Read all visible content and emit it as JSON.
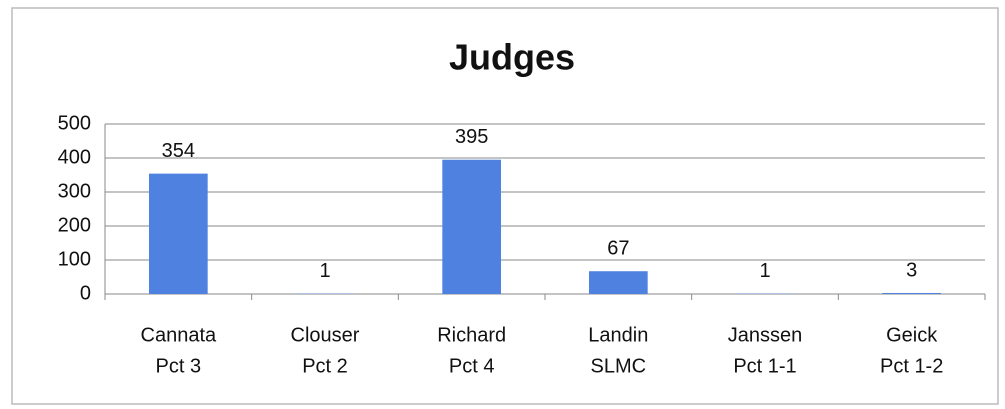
{
  "chart_data": {
    "type": "bar",
    "title": "Judges",
    "categories": [
      [
        "Cannata",
        "Pct 3"
      ],
      [
        "Clouser",
        "Pct 2"
      ],
      [
        "Richard",
        "Pct 4"
      ],
      [
        "Landin",
        "SLMC"
      ],
      [
        "Janssen",
        "Pct 1-1"
      ],
      [
        "Geick",
        "Pct 1-2"
      ]
    ],
    "values": [
      354,
      1,
      395,
      67,
      1,
      3
    ],
    "color": "#4f81e0",
    "ylim": [
      0,
      500
    ],
    "yticks": [
      0,
      100,
      200,
      300,
      400,
      500
    ],
    "grid": true
  }
}
